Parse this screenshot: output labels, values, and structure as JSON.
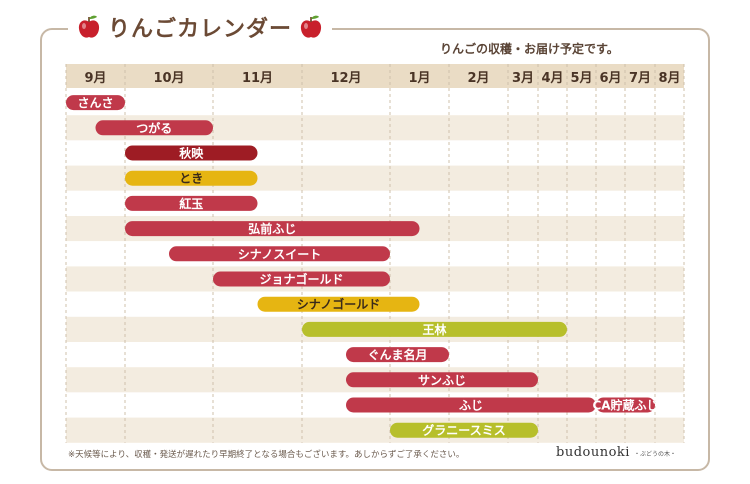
{
  "title": "りんごカレンダー",
  "subtitle": "りんごの収穫・お届け予定です。",
  "note": "※天候等により、収穫・発送が遅れたり早期終了となる場合もございます。あしからずご了承ください。",
  "logo": {
    "main": "budounoki",
    "sub": "・ぶどうの木・"
  },
  "colors": {
    "red": "#c0394a",
    "darkred": "#9e1c24",
    "yellow": "#e6b512",
    "green": "#b7bf2b",
    "header_band": "#eadcc5",
    "stripe": "#f3ece0",
    "title": "#6b4a35"
  },
  "chart_data": {
    "type": "gantt",
    "title": "りんごカレンダー",
    "months": [
      "9月",
      "10月",
      "11月",
      "12月",
      "1月",
      "2月",
      "3月",
      "4月",
      "5月",
      "6月",
      "7月",
      "8月"
    ],
    "time_unit": "months from start of September",
    "bars": [
      {
        "name": "さんさ",
        "start": 0.0,
        "end": 1.0,
        "color": "red"
      },
      {
        "name": "つがる",
        "start": 0.5,
        "end": 2.0,
        "color": "red"
      },
      {
        "name": "秋映",
        "start": 1.0,
        "end": 2.5,
        "color": "darkred"
      },
      {
        "name": "とき",
        "start": 1.0,
        "end": 2.5,
        "color": "yellow"
      },
      {
        "name": "紅玉",
        "start": 1.0,
        "end": 2.5,
        "color": "red"
      },
      {
        "name": "弘前ふじ",
        "start": 1.0,
        "end": 4.5,
        "color": "red"
      },
      {
        "name": "シナノスイート",
        "start": 1.5,
        "end": 4.0,
        "color": "red"
      },
      {
        "name": "ジョナゴールド",
        "start": 2.0,
        "end": 4.0,
        "color": "red"
      },
      {
        "name": "シナノゴールド",
        "start": 2.5,
        "end": 4.5,
        "color": "yellow"
      },
      {
        "name": "王林",
        "start": 3.0,
        "end": 8.0,
        "color": "green"
      },
      {
        "name": "ぐんま名月",
        "start": 3.5,
        "end": 5.0,
        "color": "red"
      },
      {
        "name": "サンふじ",
        "start": 3.5,
        "end": 7.0,
        "color": "red"
      },
      {
        "name": "ふじ",
        "start": 3.5,
        "end": 9.0,
        "color": "red"
      },
      {
        "name": "CA貯蔵ふじ",
        "start": 9.0,
        "end": 11.0,
        "color": "red"
      },
      {
        "name": "グラニースミス",
        "start": 4.0,
        "end": 7.0,
        "color": "green"
      }
    ],
    "rows": [
      [
        "さんさ"
      ],
      [
        "つがる"
      ],
      [
        "秋映"
      ],
      [
        "とき"
      ],
      [
        "紅玉"
      ],
      [
        "弘前ふじ"
      ],
      [
        "シナノスイート"
      ],
      [
        "ジョナゴールド"
      ],
      [
        "シナノゴールド"
      ],
      [
        "王林"
      ],
      [
        "ぐんま名月"
      ],
      [
        "サンふじ"
      ],
      [
        "ふじ",
        "CA貯蔵ふじ"
      ],
      [
        "グラニースミス"
      ]
    ]
  }
}
